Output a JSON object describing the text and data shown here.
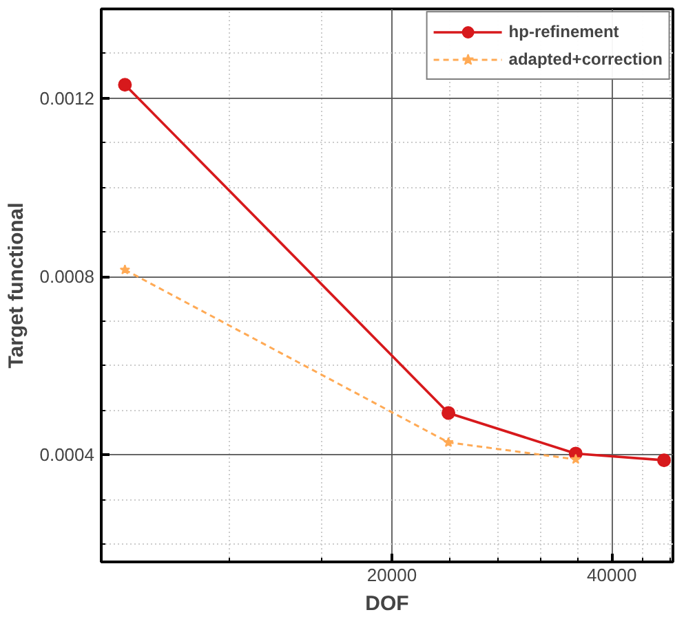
{
  "chart_data": {
    "type": "line",
    "xlabel": "DOF",
    "ylabel": "Target functional",
    "log": "x",
    "xlim": [
      8000,
      48500
    ],
    "xticks": [
      {
        "value": 12000,
        "label": null
      },
      {
        "value": 16000,
        "label": null
      },
      20000,
      {
        "value": 24000,
        "label": null
      },
      {
        "value": 28000,
        "label": null
      },
      {
        "value": 32000,
        "label": null
      },
      {
        "value": 36000,
        "label": null
      },
      40000,
      {
        "value": 44000,
        "label": null
      },
      {
        "value": 48000,
        "label": null
      }
    ],
    "ylim": [
      0.00016,
      0.0014
    ],
    "yticks": [
      {
        "value": 0.0002,
        "label": null
      },
      {
        "value": 0.0003,
        "label": null
      },
      0.0004,
      {
        "value": 0.0005,
        "label": null
      },
      {
        "value": 0.0006,
        "label": null
      },
      {
        "value": 0.0007,
        "label": null
      },
      0.0008,
      {
        "value": 0.0009,
        "label": null
      },
      {
        "value": 0.001,
        "label": null
      },
      {
        "value": 0.0011,
        "label": null
      },
      0.0012,
      {
        "value": 0.0013,
        "label": null
      }
    ],
    "grid": true,
    "legend": "top right",
    "series": [
      {
        "name": "hp-refinement",
        "color": "#d7191c",
        "marker": "circle",
        "line_style": "solid",
        "x": [
          8620,
          23900,
          35700,
          47160
        ],
        "values": [
          0.00123,
          0.000494,
          0.000403,
          0.000388
        ]
      },
      {
        "name": "adapted+correction",
        "color": "#ffaa55",
        "marker": "star",
        "line_style": "dashed",
        "x": [
          8620,
          23900,
          35700
        ],
        "values": [
          0.000815,
          0.000428,
          0.00039
        ]
      }
    ]
  }
}
